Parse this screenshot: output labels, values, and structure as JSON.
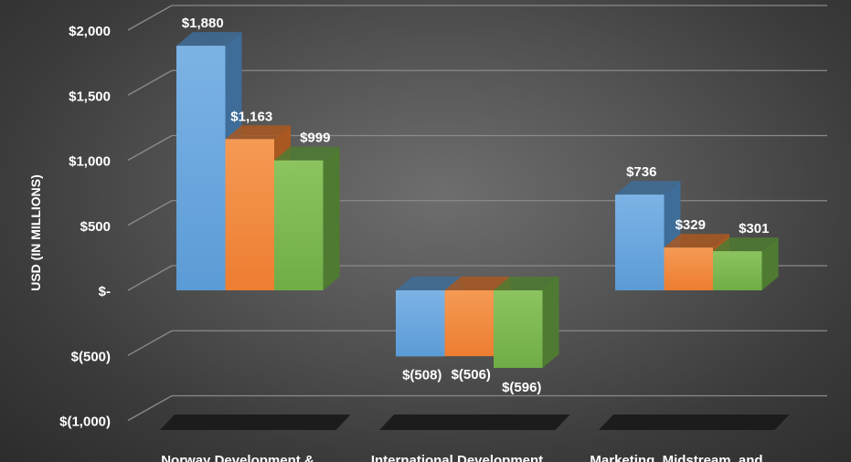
{
  "chart_data": {
    "type": "bar",
    "ylabel": "USD (IN MILLIONS)",
    "categories": [
      "Norway Development &",
      "International Development",
      "Marketing, Midstream, and"
    ],
    "series": [
      {
        "values": [
          1880,
          -508,
          736
        ],
        "labels": [
          "$1,880",
          "$(508)",
          "$736"
        ]
      },
      {
        "values": [
          1163,
          -506,
          329
        ],
        "labels": [
          "$1,163",
          "$(506)",
          "$329"
        ]
      },
      {
        "values": [
          999,
          -596,
          301
        ],
        "labels": [
          "$999",
          "$(596)",
          "$301"
        ]
      }
    ],
    "ylim": [
      -1000,
      2000
    ],
    "yticks": [
      2000,
      1500,
      1000,
      500,
      0,
      -500,
      -1000
    ],
    "ytick_labels": [
      "$2,000",
      "$1,500",
      "$1,000",
      "$500",
      "$-",
      "$(500)",
      "$(1,000)"
    ],
    "grid": true,
    "legend": "none",
    "three_d": true,
    "colors": {
      "series": [
        "#5b9bd5",
        "#ed7d31",
        "#70ad47"
      ],
      "series_light": [
        "#7cb3e6",
        "#f59a54",
        "#8cc45f"
      ],
      "series_dark": [
        "#3e6d99",
        "#a95821",
        "#4e7b31"
      ],
      "gridline": "#8a8a8a",
      "text": "#ffffff"
    }
  }
}
